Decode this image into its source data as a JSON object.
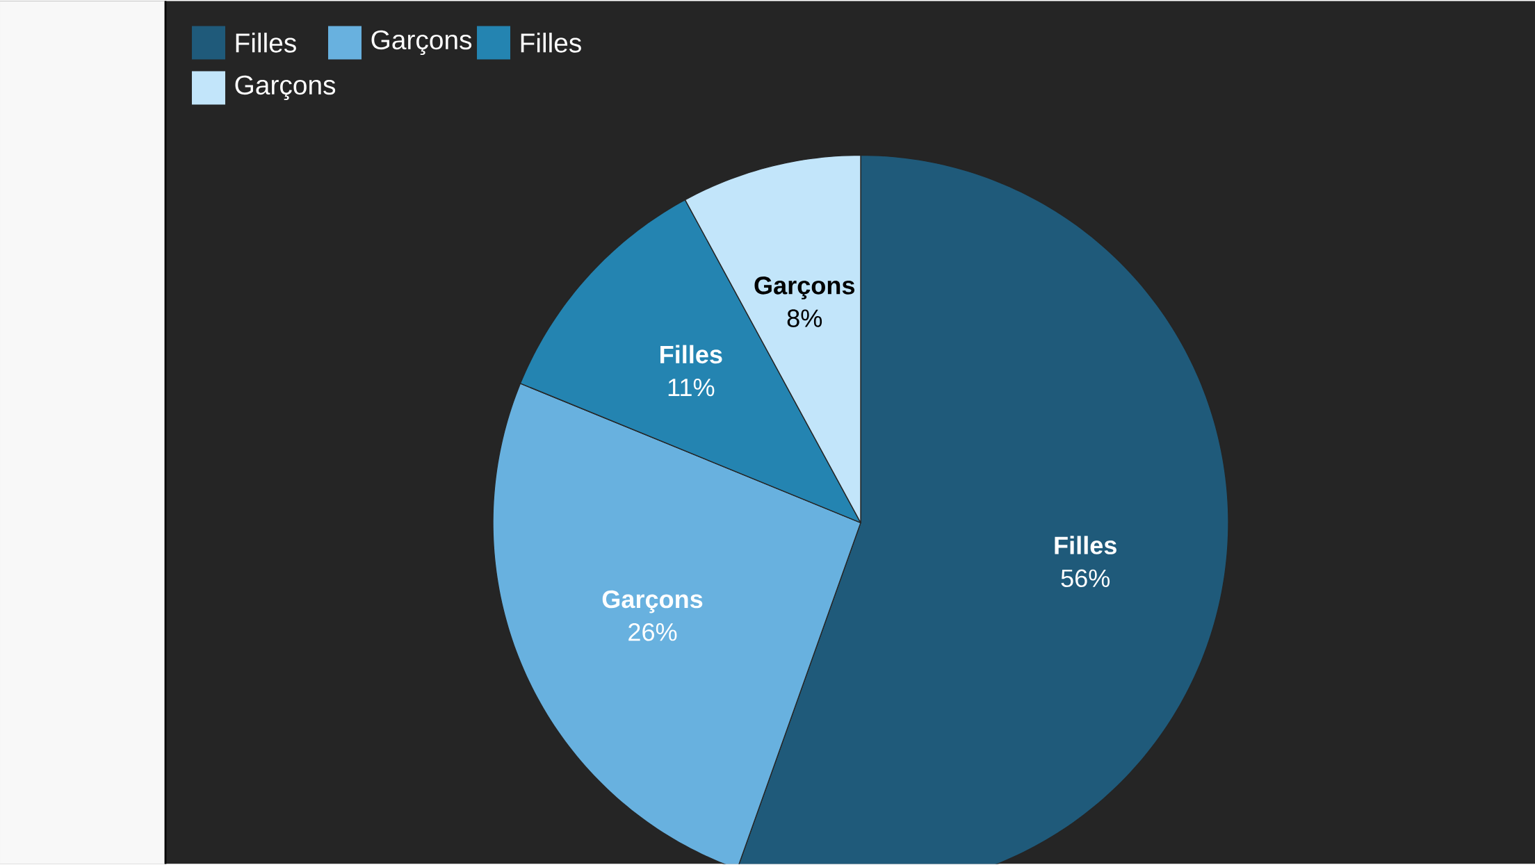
{
  "chart_data": {
    "type": "pie",
    "categories": [
      "Filles",
      "Garçons",
      "Filles",
      "Garçons"
    ],
    "values": [
      56,
      26,
      11,
      8
    ],
    "colors": [
      "#1f5a7a",
      "#68b1df",
      "#2484b1",
      "#c2e5fa"
    ],
    "value_labels": [
      "56%",
      "26%",
      "11%",
      "8%"
    ],
    "legend": "top left"
  }
}
